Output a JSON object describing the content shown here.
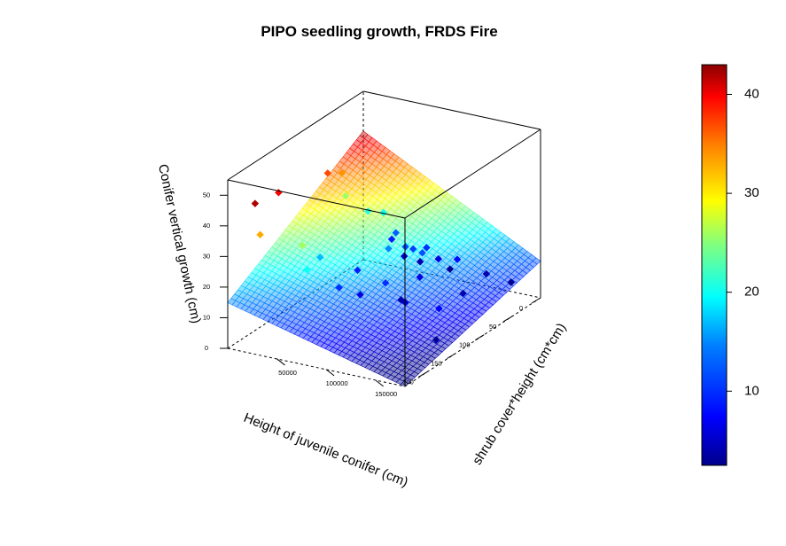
{
  "chart_data": {
    "type": "scatter",
    "subtype": "3d-scatter-with-regression-plane",
    "title": "PIPO seedling growth, FRDS Fire",
    "xlabel": "Height of juvenile conifer (cm)",
    "ylabel": "shrub cover*height (cm*cm)",
    "zlabel": "Conifer vertical growth (cm)",
    "xlim": [
      0,
      240
    ],
    "ylim": [
      0,
      180000
    ],
    "zlim": [
      0,
      55
    ],
    "x_ticks": [
      0,
      50,
      100,
      150,
      200
    ],
    "x_tick_labels": [
      "0",
      "50",
      "100",
      "150",
      "200"
    ],
    "y_ticks": [
      50000,
      100000,
      150000
    ],
    "y_tick_labels": [
      "50000",
      "100000",
      "150000"
    ],
    "z_ticks": [
      0,
      10,
      20,
      30,
      40,
      50
    ],
    "z_tick_labels": [
      "0",
      "10",
      "20",
      "30",
      "40",
      "50"
    ],
    "colorbar": {
      "range": [
        2.5,
        43
      ],
      "ticks": [
        10,
        20,
        30,
        40
      ],
      "tick_labels": [
        "10",
        "20",
        "30",
        "40"
      ],
      "colors": [
        "#00008b",
        "#0000ff",
        "#0080ff",
        "#00ffff",
        "#80ff80",
        "#ffff00",
        "#ff8000",
        "#ff0000",
        "#8b0000"
      ]
    },
    "surface": {
      "type": "plane",
      "z_at_x0_y0": 42,
      "z_at_x240_y0": 14.9,
      "z_at_x0_y180000": 12,
      "z_at_x240_y180000": 0
    },
    "points": [
      {
        "x": 0,
        "y": 88000,
        "z": 3
      },
      {
        "x": 0,
        "y": 125000,
        "z": 4
      },
      {
        "x": 0,
        "y": 150000,
        "z": 3
      },
      {
        "x": 4,
        "y": 60000,
        "z": 4
      },
      {
        "x": 3,
        "y": 78000,
        "z": 6
      },
      {
        "x": 6,
        "y": 45000,
        "z": 5
      },
      {
        "x": 8,
        "y": 100000,
        "z": 8
      },
      {
        "x": 10,
        "y": 70000,
        "z": 10
      },
      {
        "x": 2,
        "y": 30000,
        "z": 9
      },
      {
        "x": 12,
        "y": 40000,
        "z": 13
      },
      {
        "x": 20,
        "y": 32000,
        "z": 20
      },
      {
        "x": 30,
        "y": 60000,
        "z": 12
      },
      {
        "x": 30,
        "y": 22000,
        "z": 21
      },
      {
        "x": 40,
        "y": 5000,
        "z": 26
      },
      {
        "x": 45,
        "y": 4000,
        "z": 34
      },
      {
        "x": 70,
        "y": 4000,
        "z": 37
      },
      {
        "x": 48,
        "y": 85000,
        "z": 6
      },
      {
        "x": 50,
        "y": 130000,
        "z": 4
      },
      {
        "x": 35,
        "y": 80000,
        "z": 12
      },
      {
        "x": 80,
        "y": 40000,
        "z": 9
      },
      {
        "x": 90,
        "y": 90000,
        "z": 4
      },
      {
        "x": 100,
        "y": 100000,
        "z": 5
      },
      {
        "x": 110,
        "y": 60000,
        "z": 6
      },
      {
        "x": 120,
        "y": 25000,
        "z": 17
      },
      {
        "x": 130,
        "y": 50000,
        "z": 10
      },
      {
        "x": 150,
        "y": 0,
        "z": 40
      },
      {
        "x": 160,
        "y": 30000,
        "z": 26
      },
      {
        "x": 170,
        "y": 40000,
        "z": 20
      },
      {
        "x": 200,
        "y": 10000,
        "z": 33
      },
      {
        "x": 150,
        "y": 160000,
        "z": 3
      },
      {
        "x": 110,
        "y": 140000,
        "z": 7
      },
      {
        "x": 195,
        "y": 2000,
        "z": 42
      },
      {
        "x": 100,
        "y": 80000,
        "z": 10
      },
      {
        "x": 60,
        "y": 60000,
        "z": 15
      },
      {
        "x": 25,
        "y": 65000,
        "z": 11
      }
    ]
  }
}
